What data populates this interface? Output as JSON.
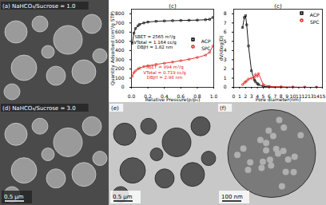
{
  "images": [
    {
      "label": "(a) NaHCO₃/Sucrose = 1.0"
    },
    {
      "label": "(d) NaHCO₃/Sucrose = 3.0",
      "scale_bar": "0.5 μm"
    },
    {
      "label": "(e)",
      "scale_bar": "0.5 μm"
    },
    {
      "label": "(f)",
      "scale_bar": "100 nm"
    }
  ],
  "chart_data": [
    {
      "type": "line",
      "title": "(c)",
      "x_label": "Relative Pressure(p/p₀)",
      "y_label": "Quantity Adsorbed (cm³/g STP)",
      "xlim": [
        0,
        1
      ],
      "ylim": [
        0,
        850
      ],
      "xticks": [
        {
          "value": 0,
          "label": "0.0"
        },
        {
          "value": 0.2,
          "label": "0.2"
        },
        {
          "value": 0.4,
          "label": "0.4"
        },
        {
          "value": 0.6,
          "label": "0.6"
        },
        {
          "value": 0.8,
          "label": "0.8"
        },
        {
          "value": 1,
          "label": "1.0"
        }
      ],
      "yticks": [
        0,
        100,
        200,
        300,
        400,
        500,
        600,
        700,
        800
      ],
      "x": [
        0.01,
        0.03,
        0.05,
        0.08,
        0.1,
        0.15,
        0.2,
        0.3,
        0.4,
        0.5,
        0.6,
        0.7,
        0.8,
        0.9,
        0.95,
        0.99
      ],
      "series": [
        {
          "name": "ACP",
          "color": "#000000",
          "marker": "square",
          "values": [
            480,
            590,
            640,
            670,
            685,
            700,
            710,
            718,
            722,
            725,
            727,
            729,
            731,
            735,
            740,
            760
          ]
        },
        {
          "name": "SPC",
          "color": "#e0201b",
          "marker": "circle",
          "values": [
            120,
            160,
            180,
            200,
            210,
            225,
            235,
            250,
            262,
            275,
            290,
            305,
            325,
            350,
            380,
            450
          ]
        }
      ],
      "annotations": [
        [
          "SBET = 2565 m²/g",
          "VTotal = 1.164 cc/g",
          "DBJH = 1.82 nm"
        ],
        [
          "SBET = 994 m²/g",
          "VTotal = 0.719 cc/g",
          "DBJH = 2.98 nm"
        ]
      ],
      "legend": "right"
    },
    {
      "type": "line",
      "title": "(c)",
      "x_label": "Pore diameter(nm)",
      "y_label": "dV/dlog(D)",
      "xlim": [
        0,
        15
      ],
      "ylim": [
        0,
        8.5
      ],
      "xticks": [
        0,
        1,
        2,
        3,
        4,
        5,
        6,
        7,
        8,
        9,
        10,
        11,
        12,
        13,
        14,
        15
      ],
      "yticks": [
        0,
        1,
        2,
        3,
        4,
        5,
        6,
        7,
        8
      ],
      "x": [
        1.5,
        1.8,
        2.0,
        2.2,
        2.5,
        3.0,
        3.5,
        3.7,
        4.0,
        4.2,
        5,
        6,
        8,
        10,
        12,
        14
      ],
      "series": [
        {
          "name": "ACP",
          "color": "#000000",
          "marker": "square",
          "values": [
            6.5,
            7.6,
            7.8,
            6.8,
            4.5,
            1.8,
            0.8,
            0.6,
            0.4,
            0.3,
            0.1,
            0.05,
            0.02,
            0.01,
            0,
            0
          ]
        },
        {
          "name": "SPC",
          "color": "#e0201b",
          "marker": "circle",
          "values": [
            0.3,
            0.5,
            0.6,
            0.7,
            0.9,
            1.0,
            1.1,
            1.4,
            1.2,
            1.5,
            0.3,
            0.1,
            0.05,
            0.02,
            0.01,
            0
          ]
        }
      ],
      "legend": "top-right"
    }
  ]
}
